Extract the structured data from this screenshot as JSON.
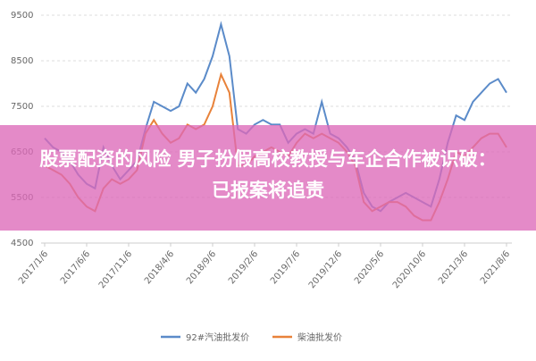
{
  "chart_data": {
    "type": "line",
    "title": "股票配资的风险 男子扮假高校教授与车企合作被识破：已报案将追责",
    "categories": [
      "2017/1/6",
      null,
      null,
      null,
      null,
      "2017/6/6",
      null,
      null,
      null,
      null,
      "2017/11/6",
      null,
      null,
      null,
      null,
      "2018/4/6",
      null,
      null,
      null,
      null,
      "2018/9/6",
      null,
      null,
      null,
      null,
      "2019/2/6",
      null,
      null,
      null,
      null,
      "2019/7/6",
      null,
      null,
      null,
      null,
      "2019/12/6",
      null,
      null,
      null,
      null,
      "2020/5/6",
      null,
      null,
      null,
      null,
      "2020/10/6",
      null,
      null,
      null,
      null,
      "2021/3/6",
      null,
      null,
      null,
      null,
      "2021/8/6"
    ],
    "series": [
      {
        "name": "92#汽油批发价",
        "color": "#5b8bc9",
        "values": [
          6800,
          6600,
          6500,
          6300,
          6000,
          5800,
          5700,
          6600,
          6200,
          5900,
          6100,
          6300,
          7000,
          7600,
          7500,
          7400,
          7500,
          8000,
          7800,
          8100,
          8600,
          9300,
          8600,
          7000,
          6900,
          7100,
          7200,
          7100,
          7100,
          6700,
          6900,
          7000,
          6900,
          7600,
          6900,
          6800,
          6600,
          6300,
          5600,
          5300,
          5200,
          5400,
          5500,
          5600,
          5500,
          5400,
          5300,
          5900,
          6700,
          7300,
          7200,
          7600,
          7800,
          8000,
          8100,
          7800
        ]
      },
      {
        "name": "柴油批发价",
        "color": "#e8823a",
        "values": [
          6200,
          6100,
          6000,
          5800,
          5500,
          5300,
          5200,
          5700,
          5900,
          5800,
          5900,
          6100,
          6900,
          7200,
          6900,
          6700,
          6800,
          7100,
          7000,
          7100,
          7500,
          8200,
          7800,
          6200,
          6200,
          6400,
          6500,
          6600,
          6500,
          6400,
          6700,
          6900,
          6800,
          6900,
          6800,
          6700,
          6500,
          6200,
          5400,
          5200,
          5300,
          5400,
          5400,
          5300,
          5100,
          5000,
          5000,
          5400,
          5900,
          6500,
          6400,
          6600,
          6800,
          6900,
          6900,
          6600
        ]
      }
    ],
    "ylim": [
      4500,
      9500
    ],
    "yticks": [
      4500,
      5500,
      6500,
      7500,
      8500,
      9500
    ],
    "grid": true,
    "legend": "bottom"
  }
}
